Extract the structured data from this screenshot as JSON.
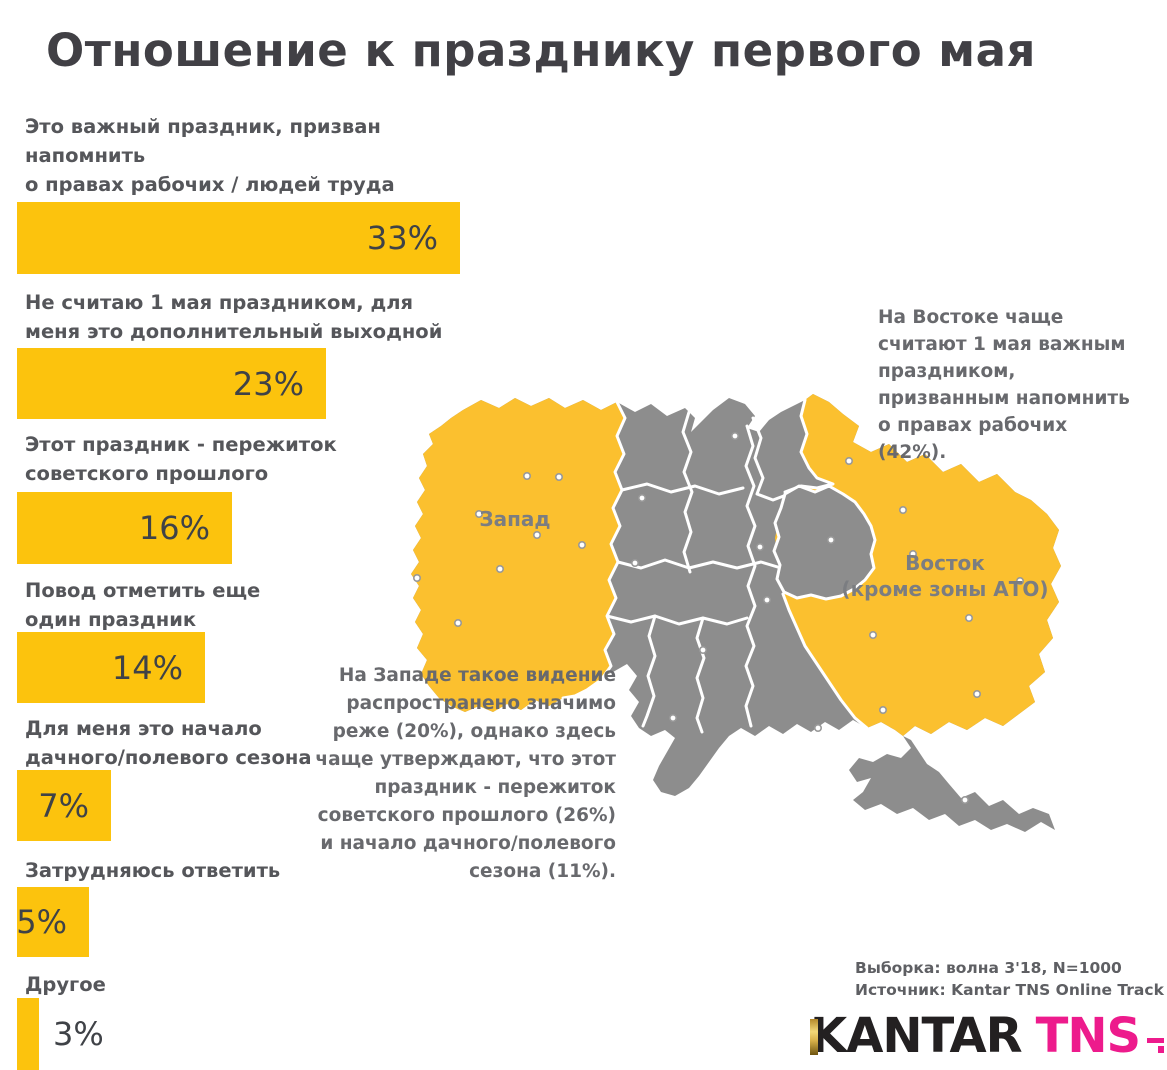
{
  "title": "Отношение к празднику первого мая",
  "chart_data": {
    "type": "bar",
    "orientation": "horizontal",
    "unit": "%",
    "title": "Отношение к празднику первого мая",
    "categories": [
      "Это важный праздник, призван напомнить\nо правах рабочих / людей труда",
      "Не считаю 1 мая праздником, для\nменя это дополнительный выходной",
      "Этот праздник - пережиток\nсоветского прошлого",
      "Повод отметить еще\nодин праздник",
      "Для меня это начало\nдачного/полевого сезона",
      "Затрудняюсь ответить",
      "Другое"
    ],
    "values": [
      33,
      23,
      16,
      14,
      7,
      5,
      3
    ],
    "value_labels": [
      "33%",
      "23%",
      "16%",
      "14%",
      "7%",
      "5%",
      "3%"
    ],
    "bar_color": "#FCC30D",
    "legend_position": "none",
    "grid": false
  },
  "map": {
    "west_label": "Запад",
    "east_label": "Восток\n(кроме зоны АТО)",
    "annotation_east": "На Востоке чаще\nсчитают 1 мая важным\nпраздником,\nпризванным напомнить\nо правах рабочих\n(42%).",
    "annotation_west": "На Западе такое видение\nраспространено значимо\nреже (20%), однако здесь\nчаще утверждают, что этот\nпраздник - пережиток\nсоветского прошлого (26%)\nи начало дачного/полевого\nсезона (11%).",
    "region_values": {
      "east_important_holiday": "42%",
      "west_important_holiday": "20%",
      "west_soviet_relic": "26%",
      "west_dacha_season": "11%"
    },
    "region_fill_highlight": "#FBC02F",
    "region_fill_default": "#8D8D8D"
  },
  "footer": {
    "sample": "Выборка: волна 3'18, N=1000",
    "source": "Источник: Kantar TNS Online Track"
  },
  "logo": {
    "brand": "KANTAR",
    "brand2": "TNS",
    "accent_pink": "#ED1B8C"
  }
}
